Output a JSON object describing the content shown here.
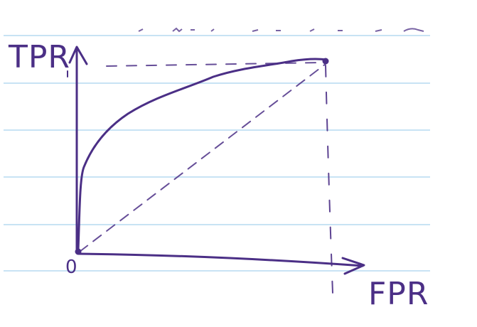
{
  "labels": {
    "y_axis": "TPR",
    "x_axis": "FPR",
    "origin": "0"
  },
  "colors": {
    "ink": "#4b2f86",
    "ruled_lines": "#c8e3f4",
    "paper": "#ffffff"
  }
}
